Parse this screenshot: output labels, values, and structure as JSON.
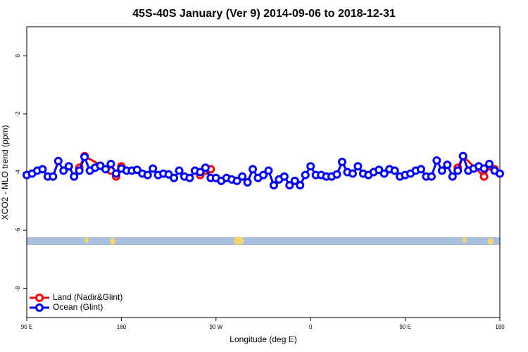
{
  "chart_data": {
    "type": "line",
    "title": "45S-40S January (Ver 9)   2014-09-06 to 2018-12-31",
    "x_label": "Longitude (deg E)",
    "y_label": "XCO2 - MLO trend (ppm)",
    "xlim": [
      90,
      540
    ],
    "xticks": [
      {
        "value": 90,
        "label": "90 E"
      },
      {
        "value": 180,
        "label": "180"
      },
      {
        "value": 270,
        "label": "90 W"
      },
      {
        "value": 360,
        "label": "0"
      },
      {
        "value": 450,
        "label": "90 E"
      },
      {
        "value": 540,
        "label": "180"
      }
    ],
    "ylim": [
      -9,
      1
    ],
    "yticks": [
      0,
      -2,
      -4,
      -6,
      -8
    ],
    "legend": "bottom-left",
    "series": [
      {
        "name": "Land (Nadir&Glint)",
        "color": "#ff0000",
        "x": [
          140,
          145,
          170,
          175,
          180,
          220,
          255,
          260,
          265,
          380,
          500,
          505,
          525,
          530,
          535
        ],
        "values": [
          -3.85,
          -3.45,
          -3.95,
          -4.15,
          -3.8,
          null,
          -4.1,
          -3.95,
          -3.9,
          null,
          -3.85,
          -3.45,
          -4.15,
          -3.8,
          -3.9
        ]
      },
      {
        "name": "Ocean (Glint)",
        "color": "#0000ff",
        "x": [
          90,
          95,
          100,
          105,
          110,
          115,
          120,
          125,
          130,
          135,
          140,
          145,
          150,
          155,
          160,
          165,
          170,
          175,
          180,
          185,
          190,
          195,
          200,
          205,
          210,
          215,
          220,
          225,
          230,
          235,
          240,
          245,
          250,
          255,
          260,
          265,
          270,
          275,
          280,
          285,
          290,
          295,
          300,
          305,
          310,
          315,
          320,
          325,
          330,
          335,
          340,
          345,
          350,
          355,
          360,
          365,
          370,
          375,
          380,
          385,
          390,
          395,
          400,
          405,
          410,
          415,
          420,
          425,
          430,
          435,
          440,
          445,
          450,
          455,
          460,
          465,
          470,
          475,
          480,
          485,
          490,
          495,
          500,
          505,
          510,
          515,
          520,
          525,
          530,
          535,
          540
        ],
        "values": [
          -4.1,
          -4.05,
          -3.95,
          -3.9,
          -4.15,
          -4.15,
          -3.62,
          -3.95,
          -3.8,
          -4.15,
          -3.95,
          -3.48,
          -3.95,
          -3.85,
          -3.78,
          -3.9,
          -3.72,
          -4.05,
          -3.88,
          -3.95,
          -3.95,
          -3.92,
          -4.05,
          -4.1,
          -3.88,
          -4.1,
          -4.05,
          -4.08,
          -4.2,
          -3.95,
          -4.15,
          -4.2,
          -3.95,
          -4.0,
          -3.85,
          -4.2,
          -4.2,
          -4.3,
          -4.2,
          -4.25,
          -4.3,
          -4.15,
          -4.35,
          -3.9,
          -4.2,
          -4.1,
          -3.95,
          -4.45,
          -4.25,
          -4.15,
          -4.45,
          -4.3,
          -4.45,
          -4.1,
          -3.8,
          -4.1,
          -4.1,
          -4.15,
          -4.15,
          -4.08,
          -3.65,
          -4.0,
          -4.05,
          -3.8,
          -4.05,
          -4.1,
          -4.0,
          -3.92,
          -4.05,
          -3.9,
          -3.95,
          -4.15,
          -4.1,
          -4.05,
          -3.95,
          -3.9,
          -4.15,
          -4.15,
          -3.6,
          -3.95,
          -3.75,
          -4.15,
          -3.95,
          -3.45,
          -3.95,
          -3.88,
          -3.8,
          -3.88,
          -3.72,
          -3.95,
          -4.05
        ]
      }
    ]
  }
}
